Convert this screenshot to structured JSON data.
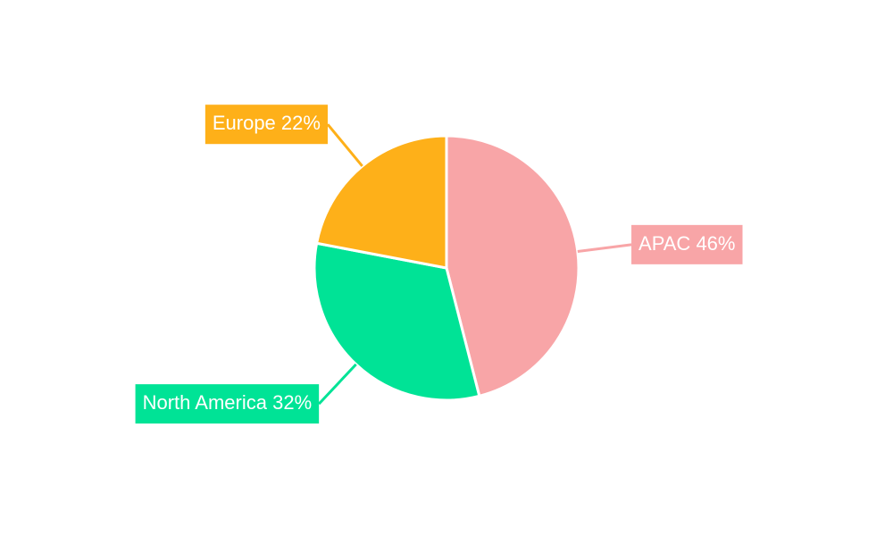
{
  "chart_data": {
    "type": "pie",
    "categories": [
      "APAC",
      "North America",
      "Europe"
    ],
    "values": [
      46,
      32,
      22
    ],
    "value_labels": [
      "46%",
      "32%",
      "22%"
    ],
    "colors": [
      "#f8a5a7",
      "#00e396",
      "#feb019"
    ]
  }
}
